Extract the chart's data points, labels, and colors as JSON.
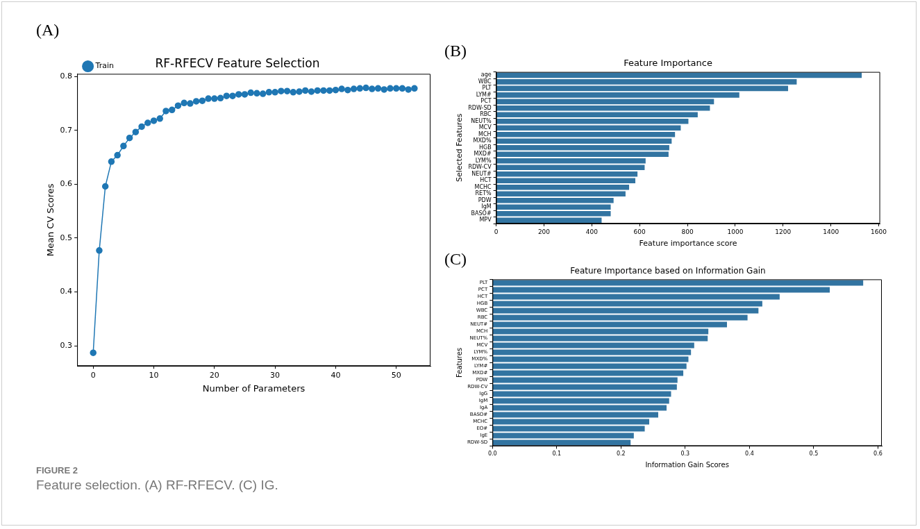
{
  "chart_data": [
    {
      "type": "line",
      "title": "RF-RFECV Feature Selection",
      "xlabel": "Number of Parameters",
      "ylabel": "Mean CV Scores",
      "annotations": [
        "(A)",
        "FIGURE 2",
        "Feature selection. (A) RF-RFECV. (C) IG."
      ],
      "x": [
        0,
        1,
        2,
        3,
        4,
        5,
        6,
        7,
        8,
        9,
        10,
        11,
        12,
        13,
        14,
        15,
        16,
        17,
        18,
        19,
        20,
        21,
        22,
        23,
        24,
        25,
        26,
        27,
        28,
        29,
        30,
        31,
        32,
        33,
        34,
        35,
        36,
        37,
        38,
        39,
        40,
        41,
        42,
        43,
        44,
        45,
        46,
        47,
        48,
        49,
        50,
        51,
        52,
        53
      ],
      "series": [
        {
          "name": "Train",
          "color": "#1f77b4",
          "values": [
            0.287,
            0.477,
            0.596,
            0.642,
            0.654,
            0.671,
            0.686,
            0.697,
            0.707,
            0.714,
            0.718,
            0.722,
            0.736,
            0.738,
            0.746,
            0.751,
            0.75,
            0.754,
            0.755,
            0.759,
            0.759,
            0.76,
            0.764,
            0.764,
            0.767,
            0.767,
            0.77,
            0.769,
            0.768,
            0.771,
            0.771,
            0.773,
            0.773,
            0.771,
            0.772,
            0.774,
            0.772,
            0.774,
            0.774,
            0.774,
            0.775,
            0.777,
            0.775,
            0.777,
            0.778,
            0.779,
            0.777,
            0.778,
            0.776,
            0.778,
            0.778,
            0.778,
            0.776,
            0.778
          ]
        }
      ],
      "xlim": [
        -2.65,
        55.65
      ],
      "xticks": [
        0,
        10,
        20,
        30,
        40,
        50
      ],
      "ylim": [
        0.2625,
        0.805
      ],
      "yticks": [
        0.3,
        0.4,
        0.5,
        0.6,
        0.7,
        0.8
      ],
      "grid": false,
      "legend": "top left",
      "marker": "circle",
      "line_style": "solid"
    },
    {
      "type": "bar",
      "orientation": "horizontal",
      "title": "Feature Importance",
      "xlabel": "Feature importance score",
      "ylabel": "Selected Features",
      "annotations": [
        "(B)"
      ],
      "categories": [
        "age",
        "WBC",
        "PLT",
        "LYM#",
        "PCT",
        "RDW-SD",
        "RBC",
        "NEUT%",
        "MCV",
        "MCH",
        "MXD%",
        "HGB",
        "MXD#",
        "LYM%",
        "RDW-CV",
        "NEUT#",
        "HCT",
        "MCHC",
        "RET%",
        "PDW",
        "IgM",
        "BASO#",
        "MPV"
      ],
      "values": [
        1529,
        1257,
        1221,
        1017,
        911,
        894,
        843,
        804,
        772,
        748,
        734,
        724,
        721,
        625,
        621,
        591,
        582,
        556,
        541,
        491,
        479,
        479,
        441
      ],
      "color": "#3274a1",
      "xlim": [
        0,
        1606
      ],
      "xticks": [
        0,
        200,
        400,
        600,
        800,
        1000,
        1200,
        1400,
        1600
      ],
      "grid": false,
      "legend": false
    },
    {
      "type": "bar",
      "orientation": "horizontal",
      "title": "Feature Importance based on Information Gain",
      "xlabel": "Information Gain Scores",
      "ylabel": "Features",
      "annotations": [
        "(C)"
      ],
      "categories": [
        "PLT",
        "PCT",
        "HCT",
        "HGB",
        "WBC",
        "RBC",
        "NEUT#",
        "MCH",
        "NEUT%",
        "MCV",
        "LYM%",
        "MXD%",
        "LYM#",
        "MXD#",
        "PDW",
        "RDW-CV",
        "IgG",
        "IgM",
        "IgA",
        "BASO#",
        "MCHC",
        "EO#",
        "IgE",
        "RDW-SD"
      ],
      "values": [
        0.577,
        0.525,
        0.447,
        0.42,
        0.414,
        0.397,
        0.365,
        0.336,
        0.335,
        0.314,
        0.309,
        0.305,
        0.302,
        0.297,
        0.288,
        0.287,
        0.278,
        0.275,
        0.271,
        0.258,
        0.244,
        0.237,
        0.22,
        0.215
      ],
      "color": "#3274a1",
      "xlim": [
        0,
        0.606
      ],
      "xticks": [
        {
          "value": 0,
          "label": "0.0"
        },
        {
          "value": 0.1,
          "label": "0.1"
        },
        {
          "value": 0.2,
          "label": "0.2"
        },
        {
          "value": 0.3,
          "label": "0.3"
        },
        {
          "value": 0.4,
          "label": "0.4"
        },
        {
          "value": 0.5,
          "label": "0.5"
        },
        {
          "value": 0.6,
          "label": "0.6"
        }
      ],
      "grid": false,
      "legend": false
    }
  ]
}
